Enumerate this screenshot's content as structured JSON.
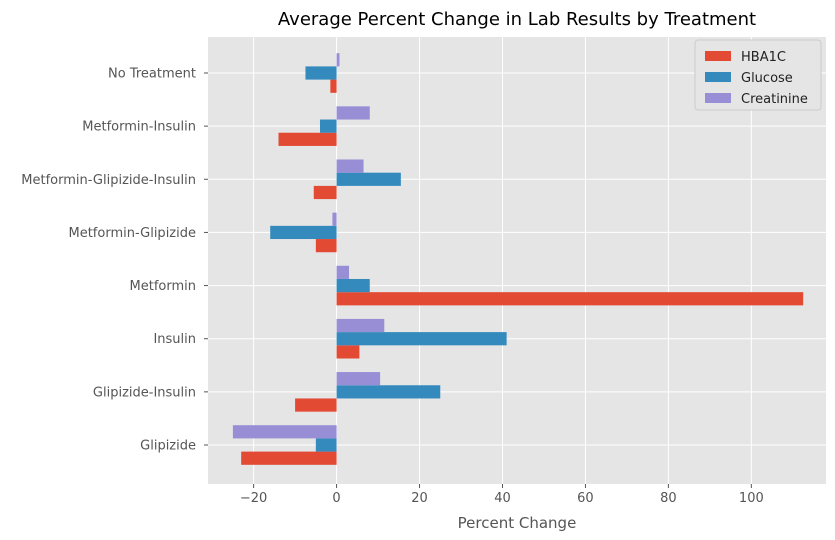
{
  "chart_data": {
    "type": "bar",
    "orientation": "horizontal",
    "title": "Average Percent Change in Lab Results by Treatment",
    "xlabel": "Percent Change",
    "ylabel": "",
    "xlim": [
      -31,
      118
    ],
    "xticks": [
      -20,
      0,
      20,
      40,
      60,
      80,
      100
    ],
    "xtick_labels": [
      "−20",
      "0",
      "20",
      "40",
      "60",
      "80",
      "100"
    ],
    "grid": true,
    "legend_position": "top-right",
    "categories": [
      "Glipizide",
      "Glipizide-Insulin",
      "Insulin",
      "Metformin",
      "Metformin-Glipizide",
      "Metformin-Glipizide-Insulin",
      "Metformin-Insulin",
      "No Treatment"
    ],
    "series": [
      {
        "name": "HBA1C",
        "color": "#E24A33",
        "values": [
          -23.0,
          -10.0,
          5.5,
          112.5,
          -5.0,
          -5.5,
          -14.0,
          -1.5
        ]
      },
      {
        "name": "Glucose",
        "color": "#348ABD",
        "values": [
          -5.0,
          25.0,
          41.0,
          8.0,
          -16.0,
          15.5,
          -4.0,
          -7.5
        ]
      },
      {
        "name": "Creatinine",
        "color": "#988ED5",
        "values": [
          -25.0,
          10.5,
          11.5,
          3.0,
          -1.0,
          6.5,
          8.0,
          0.7
        ]
      }
    ]
  }
}
